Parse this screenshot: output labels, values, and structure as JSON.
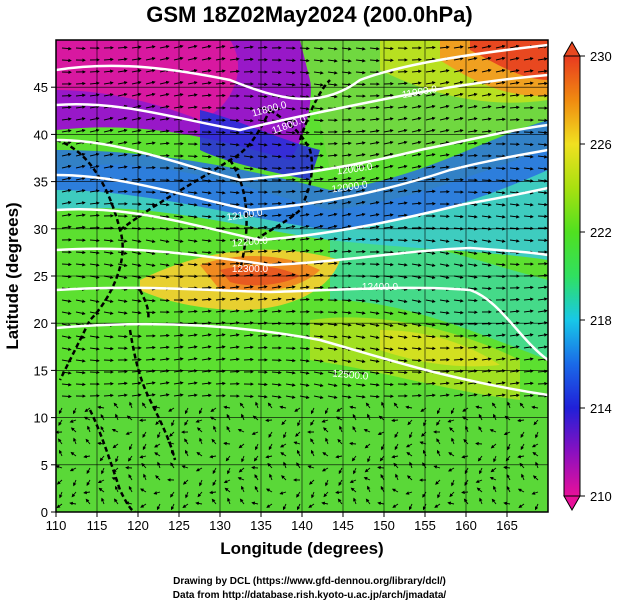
{
  "title": "GSM 18Z02May2024 (200.0hPa)",
  "x_axis": {
    "label": "Longitude (degrees)",
    "ticks": [
      "110",
      "115",
      "120",
      "125",
      "130",
      "135",
      "140",
      "145",
      "150",
      "155",
      "160",
      "165"
    ],
    "range": [
      110,
      170
    ]
  },
  "y_axis": {
    "label": "Latitude  (degrees)",
    "ticks": [
      "0",
      "5",
      "10",
      "15",
      "20",
      "25",
      "30",
      "35",
      "40",
      "45"
    ],
    "range": [
      0,
      50
    ]
  },
  "colorbar": {
    "labels": [
      "230",
      "226",
      "222",
      "218",
      "214",
      "210"
    ],
    "range": [
      210,
      230
    ],
    "colors": [
      "#e8109a",
      "#6a1ac8",
      "#1a2ee0",
      "#1aa0f0",
      "#20d8d0",
      "#40e020",
      "#90e010",
      "#f0e020",
      "#f08a10",
      "#e83a20"
    ]
  },
  "contour_labels": [
    "11800.0",
    "11800.0",
    "11900.0",
    "12000.0",
    "12000.0",
    "12100.0",
    "12200.0",
    "12300.0",
    "12400.0",
    "12500.0"
  ],
  "credits": {
    "line1": "Drawing by DCL (https://www.gfd-dennou.org/library/dcl/)",
    "line2": "Data from http://database.rish.kyoto-u.ac.jp/arch/jmadata/"
  },
  "chart_data": {
    "type": "heatmap",
    "title": "GSM 18Z02May2024 (200.0hPa)",
    "xlabel": "Longitude (degrees)",
    "ylabel": "Latitude  (degrees)",
    "xlim": [
      110,
      170
    ],
    "ylim": [
      0,
      50
    ],
    "color_range": [
      210,
      230
    ],
    "contour_values": [
      11800.0,
      11900.0,
      12000.0,
      12100.0,
      12200.0,
      12300.0,
      12400.0,
      12500.0
    ],
    "grid": true
  }
}
